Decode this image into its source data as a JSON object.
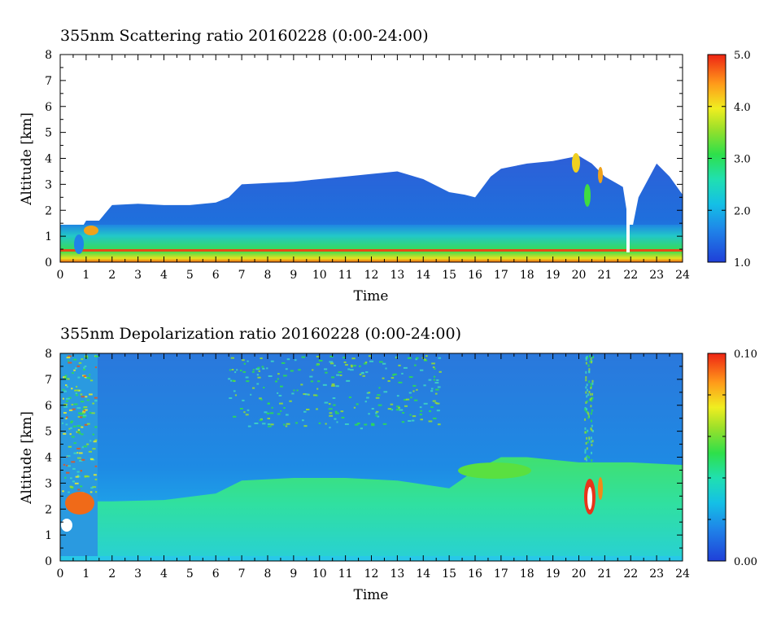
{
  "chart_data": [
    {
      "type": "heatmap",
      "title": "355nm Scattering ratio  20160228 (0:00-24:00)",
      "xlabel": "Time",
      "ylabel": "Altitude [km]",
      "xlim": [
        0,
        24
      ],
      "ylim": [
        0,
        8
      ],
      "x_ticks": [
        "0",
        "1",
        "2",
        "3",
        "4",
        "5",
        "6",
        "7",
        "8",
        "9",
        "10",
        "11",
        "12",
        "13",
        "14",
        "15",
        "16",
        "17",
        "18",
        "19",
        "20",
        "21",
        "22",
        "23",
        "24"
      ],
      "y_ticks": [
        "0",
        "1",
        "2",
        "3",
        "4",
        "5",
        "6",
        "7",
        "8"
      ],
      "colorbar": {
        "min": 1.0,
        "max": 5.0,
        "ticks": [
          "1.0",
          "2.0",
          "3.0",
          "4.0",
          "5.0"
        ]
      },
      "cloud_top_km": [
        [
          0.0,
          1.1
        ],
        [
          0.7,
          1.1
        ],
        [
          1.0,
          1.6
        ],
        [
          1.5,
          1.6
        ],
        [
          2.0,
          2.2
        ],
        [
          3.0,
          2.25
        ],
        [
          4.0,
          2.2
        ],
        [
          5.0,
          2.2
        ],
        [
          6.0,
          2.3
        ],
        [
          6.5,
          2.5
        ],
        [
          7.0,
          3.0
        ],
        [
          8.0,
          3.05
        ],
        [
          9.0,
          3.1
        ],
        [
          10.0,
          3.2
        ],
        [
          11.0,
          3.3
        ],
        [
          12.0,
          3.4
        ],
        [
          13.0,
          3.5
        ],
        [
          14.0,
          3.2
        ],
        [
          15.0,
          2.7
        ],
        [
          15.6,
          2.6
        ],
        [
          16.0,
          2.5
        ],
        [
          16.6,
          3.3
        ],
        [
          17.0,
          3.6
        ],
        [
          18.0,
          3.8
        ],
        [
          19.0,
          3.9
        ],
        [
          20.0,
          4.1
        ],
        [
          20.5,
          3.8
        ],
        [
          21.0,
          3.3
        ],
        [
          21.7,
          2.9
        ],
        [
          22.0,
          1.0
        ],
        [
          22.3,
          2.5
        ],
        [
          23.0,
          3.8
        ],
        [
          23.5,
          3.3
        ],
        [
          24.0,
          2.6
        ]
      ]
    },
    {
      "type": "heatmap",
      "title": "355nm Depolarization ratio  20160228 (0:00-24:00)",
      "xlabel": "Time",
      "ylabel": "Altitude [km]",
      "xlim": [
        0,
        24
      ],
      "ylim": [
        0,
        8
      ],
      "x_ticks": [
        "0",
        "1",
        "2",
        "3",
        "4",
        "5",
        "6",
        "7",
        "8",
        "9",
        "10",
        "11",
        "12",
        "13",
        "14",
        "15",
        "16",
        "17",
        "18",
        "19",
        "20",
        "21",
        "22",
        "23",
        "24"
      ],
      "y_ticks": [
        "0",
        "1",
        "2",
        "3",
        "4",
        "5",
        "6",
        "7",
        "8"
      ],
      "colorbar": {
        "min": 0.0,
        "max": 0.1,
        "ticks": [
          "0.00",
          "0.10"
        ]
      },
      "layer_top_km": [
        [
          0.0,
          2.3
        ],
        [
          2.0,
          2.3
        ],
        [
          4.0,
          2.35
        ],
        [
          6.0,
          2.6
        ],
        [
          7.0,
          3.1
        ],
        [
          9.0,
          3.2
        ],
        [
          11.0,
          3.2
        ],
        [
          13.0,
          3.1
        ],
        [
          15.0,
          2.8
        ],
        [
          16.0,
          3.5
        ],
        [
          17.0,
          4.0
        ],
        [
          18.0,
          4.0
        ],
        [
          19.0,
          3.9
        ],
        [
          20.0,
          3.8
        ],
        [
          22.0,
          3.8
        ],
        [
          24.0,
          3.7
        ]
      ]
    }
  ]
}
